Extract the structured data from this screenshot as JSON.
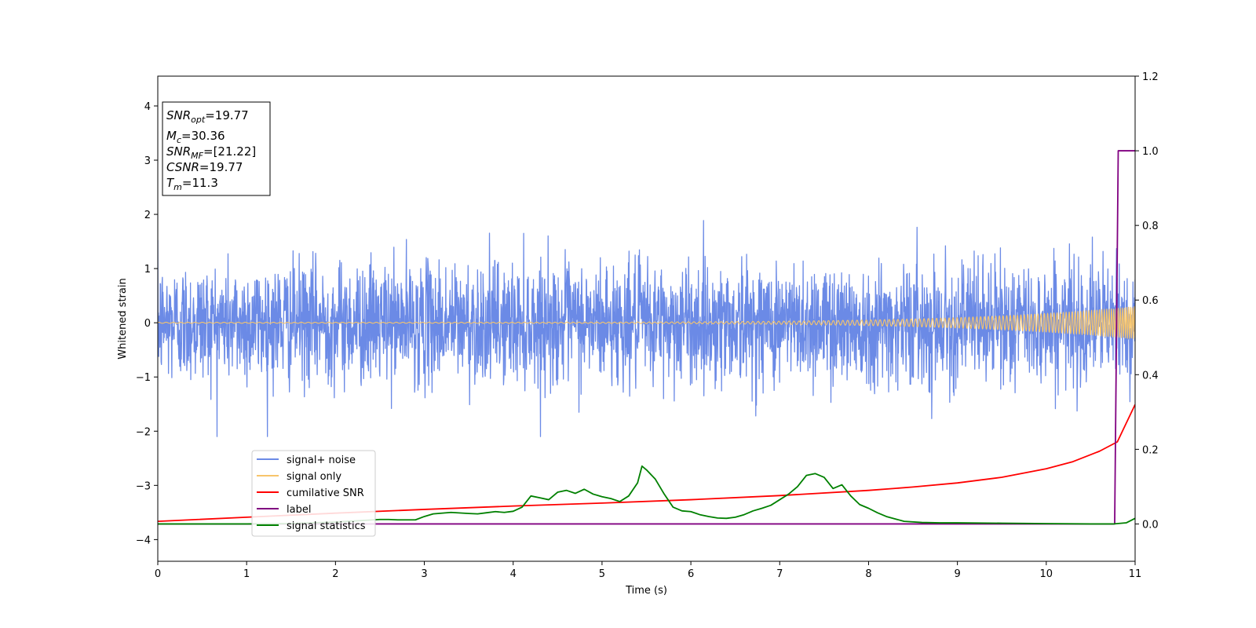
{
  "chart_data": {
    "type": "line",
    "xlabel": "Time (s)",
    "ylabel": "Whitened strain",
    "xlim": [
      0,
      11
    ],
    "ylim_left": [
      -4.4,
      4.55
    ],
    "ylim_right": [
      -0.1,
      1.2
    ],
    "x_ticks": [
      "0",
      "1",
      "2",
      "3",
      "4",
      "5",
      "6",
      "7",
      "8",
      "9",
      "10",
      "11"
    ],
    "y_ticks_left": [
      "−4",
      "−3",
      "−2",
      "−1",
      "0",
      "1",
      "2",
      "3",
      "4"
    ],
    "y_ticks_right": [
      "0.0",
      "0.2",
      "0.4",
      "0.6",
      "0.8",
      "1.0",
      "1.2"
    ],
    "annotation": {
      "snr_opt": {
        "base": "SNR",
        "sub": "opt",
        "rest": "=19.77"
      },
      "mc": {
        "base": "M",
        "sub": "c",
        "rest": "=30.36"
      },
      "snr_mf": {
        "base": "SNR",
        "sub": "MF",
        "rest": "=[21.22]"
      },
      "csnr": {
        "base": "CSNR",
        "rest": "=19.77"
      },
      "tm": {
        "base": "T",
        "sub": "m",
        "rest": "=11.3"
      }
    },
    "legend": {
      "placement": "lower-left",
      "items": [
        {
          "label": "signal+ noise",
          "color": "#6b8ae6"
        },
        {
          "label": "signal only",
          "color": "#f7c56b"
        },
        {
          "label": "cumilative SNR",
          "color": "#ff0000"
        },
        {
          "label": "label",
          "color": "#800080"
        },
        {
          "label": "signal statistics",
          "color": "#008000"
        }
      ]
    },
    "series": [
      {
        "name": "signal+ noise",
        "axis": "left",
        "color": "#6b8ae6",
        "style": "noise",
        "amplitude_std": 0.55,
        "x_range": [
          0,
          11
        ]
      },
      {
        "name": "signal only",
        "axis": "left",
        "color": "#f7c56b",
        "style": "chirp",
        "x_range": [
          0,
          11
        ],
        "amplitude_start": 0.01,
        "amplitude_end": 0.3
      },
      {
        "name": "cumilative SNR",
        "axis": "right",
        "x": [
          0,
          1,
          2,
          3,
          4,
          5,
          6,
          7,
          8,
          8.5,
          9,
          9.5,
          10,
          10.3,
          10.6,
          10.8,
          11
        ],
        "y": [
          0.007,
          0.018,
          0.029,
          0.039,
          0.048,
          0.056,
          0.065,
          0.076,
          0.09,
          0.099,
          0.11,
          0.125,
          0.148,
          0.167,
          0.195,
          0.22,
          0.32
        ]
      },
      {
        "name": "label",
        "axis": "right",
        "x": [
          0,
          10.77,
          10.81,
          11
        ],
        "y": [
          0,
          0,
          1,
          1
        ]
      },
      {
        "name": "signal statistics",
        "axis": "right",
        "x": [
          0,
          0.5,
          1,
          1.5,
          2,
          2.5,
          2.6,
          2.7,
          2.9,
          3.0,
          3.1,
          3.3,
          3.5,
          3.6,
          3.7,
          3.8,
          3.9,
          4.0,
          4.1,
          4.2,
          4.3,
          4.4,
          4.5,
          4.6,
          4.7,
          4.8,
          4.9,
          5.0,
          5.1,
          5.2,
          5.3,
          5.4,
          5.45,
          5.5,
          5.6,
          5.7,
          5.8,
          5.9,
          6.0,
          6.1,
          6.2,
          6.3,
          6.4,
          6.5,
          6.6,
          6.7,
          6.8,
          6.9,
          7.0,
          7.1,
          7.2,
          7.3,
          7.4,
          7.5,
          7.6,
          7.7,
          7.8,
          7.9,
          8.0,
          8.1,
          8.2,
          8.4,
          8.6,
          8.8,
          9.0,
          9.5,
          10.0,
          10.5,
          10.75,
          10.9,
          11.0
        ],
        "y": [
          0.0,
          0.0,
          0.0,
          0.001,
          0.005,
          0.012,
          0.012,
          0.011,
          0.011,
          0.02,
          0.027,
          0.031,
          0.028,
          0.027,
          0.03,
          0.033,
          0.031,
          0.034,
          0.045,
          0.075,
          0.07,
          0.065,
          0.085,
          0.09,
          0.082,
          0.093,
          0.08,
          0.073,
          0.068,
          0.06,
          0.075,
          0.11,
          0.155,
          0.145,
          0.12,
          0.08,
          0.045,
          0.035,
          0.033,
          0.025,
          0.02,
          0.016,
          0.015,
          0.018,
          0.025,
          0.035,
          0.042,
          0.05,
          0.065,
          0.08,
          0.1,
          0.13,
          0.135,
          0.125,
          0.095,
          0.105,
          0.075,
          0.052,
          0.042,
          0.03,
          0.02,
          0.007,
          0.004,
          0.003,
          0.003,
          0.002,
          0.001,
          0.0,
          0.0,
          0.003,
          0.015
        ]
      }
    ]
  }
}
